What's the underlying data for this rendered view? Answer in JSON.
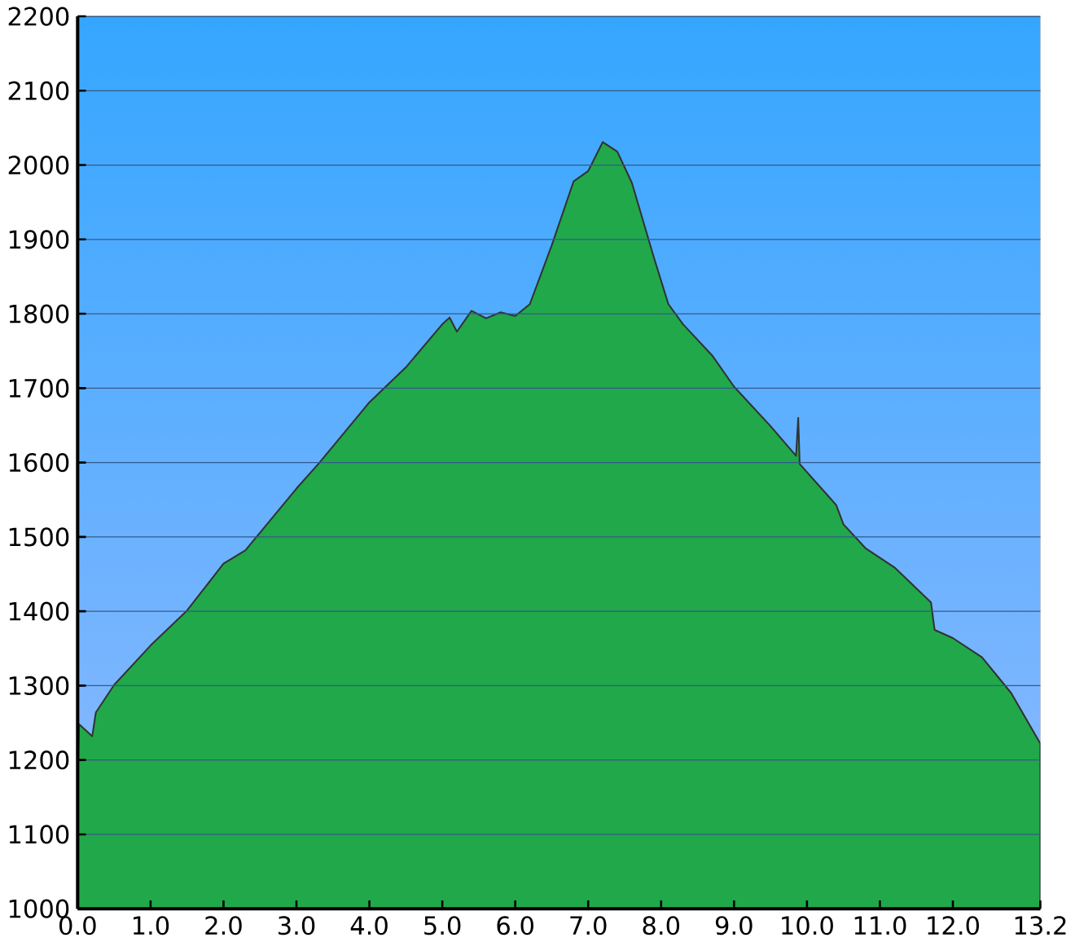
{
  "chart_data": {
    "type": "area",
    "x": [
      0.0,
      0.02,
      0.2,
      0.25,
      0.5,
      1.0,
      1.5,
      2.0,
      2.3,
      3.0,
      3.3,
      4.0,
      4.5,
      5.0,
      5.1,
      5.2,
      5.4,
      5.6,
      5.8,
      6.0,
      6.2,
      6.5,
      6.8,
      7.0,
      7.2,
      7.4,
      7.6,
      7.9,
      8.1,
      8.3,
      8.7,
      9.0,
      9.5,
      9.85,
      9.88,
      9.9,
      10.4,
      10.5,
      10.8,
      11.2,
      11.7,
      11.75,
      12.0,
      12.4,
      12.8,
      13.2
    ],
    "series": [
      {
        "color": "#21a84a",
        "values": [
          1164,
          1248,
          1232,
          1264,
          1301,
          1354,
          1401,
          1464,
          1482,
          1565,
          1598,
          1681,
          1728,
          1786,
          1795,
          1776,
          1804,
          1794,
          1802,
          1797,
          1813,
          1892,
          1978,
          1992,
          2031,
          2018,
          1976,
          1876,
          1813,
          1786,
          1744,
          1702,
          1649,
          1609,
          1660,
          1598,
          1543,
          1517,
          1485,
          1459,
          1412,
          1375,
          1364,
          1338,
          1290,
          1222
        ]
      }
    ],
    "xlim": [
      0,
      13.2
    ],
    "ylim": [
      1000,
      2200
    ],
    "xticks": [
      {
        "value": 0,
        "label": "0.0"
      },
      {
        "value": 1,
        "label": "1.0"
      },
      {
        "value": 2,
        "label": "2.0"
      },
      {
        "value": 3,
        "label": "3.0"
      },
      {
        "value": 4,
        "label": "4.0"
      },
      {
        "value": 5,
        "label": "5.0"
      },
      {
        "value": 6,
        "label": "6.0"
      },
      {
        "value": 7,
        "label": "7.0"
      },
      {
        "value": 8,
        "label": "8.0"
      },
      {
        "value": 9,
        "label": "9.0"
      },
      {
        "value": 10,
        "label": "10.0"
      },
      {
        "value": 11,
        "label": "11.0"
      },
      {
        "value": 12,
        "label": "12.0"
      },
      {
        "value": 13.2,
        "label": "13.2"
      }
    ],
    "yticks": [
      1000,
      1100,
      1200,
      1300,
      1400,
      1500,
      1600,
      1700,
      1800,
      1900,
      2000,
      2100,
      2200
    ],
    "grid": "y"
  }
}
